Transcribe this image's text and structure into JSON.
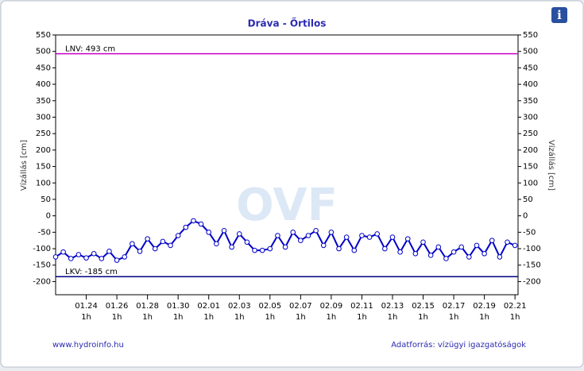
{
  "chart_data": {
    "type": "line",
    "title": "Dráva - Őrtilos",
    "y_label": "Vízállás [cm]",
    "y2_label": "Vízállás [cm]",
    "watermark": "OVF",
    "footer_left": "www.hydroinfo.hu",
    "footer_right": "Adatforrás: vízügyi igazgatóságok",
    "x": [
      0,
      0.5,
      1,
      1.5,
      2,
      2.5,
      3,
      3.5,
      4,
      4.5,
      5,
      5.5,
      6,
      6.5,
      7,
      7.5,
      8,
      8.5,
      9,
      9.5,
      10,
      10.5,
      11,
      11.5,
      12,
      12.5,
      13,
      13.5,
      14,
      14.5,
      15,
      15.5,
      16,
      16.5,
      17,
      17.5,
      18,
      18.5,
      19,
      19.5,
      20,
      20.5,
      21,
      21.5,
      22,
      22.5,
      23,
      23.5,
      24,
      24.5,
      25,
      25.5,
      26,
      26.5,
      27,
      27.5,
      28,
      28.5,
      29,
      29.5,
      30
    ],
    "series": [
      {
        "name": "Vízállás",
        "color": "#0000c8",
        "values": [
          -125,
          -110,
          -130,
          -118,
          -128,
          -115,
          -130,
          -108,
          -135,
          -125,
          -85,
          -108,
          -70,
          -100,
          -78,
          -90,
          -60,
          -35,
          -15,
          -25,
          -50,
          -85,
          -45,
          -95,
          -55,
          -80,
          -105,
          -105,
          -100,
          -60,
          -95,
          -50,
          -75,
          -60,
          -45,
          -90,
          -50,
          -100,
          -65,
          -105,
          -60,
          -65,
          -55,
          -100,
          -65,
          -110,
          -70,
          -115,
          -80,
          -120,
          -95,
          -130,
          -110,
          -95,
          -125,
          -90,
          -115,
          -75,
          -125,
          -80,
          -90
        ]
      }
    ],
    "reference_lines": [
      {
        "label": "LNV: 493 cm",
        "value": 493,
        "color": "#c800c8"
      },
      {
        "label": "LKV: -185 cm",
        "value": -185,
        "color": "#000080"
      }
    ],
    "xlim": [
      0,
      30.2
    ],
    "xticks": [
      {
        "value": 2,
        "label": "01.24"
      },
      {
        "value": 4,
        "label": "01.26"
      },
      {
        "value": 6,
        "label": "01.28"
      },
      {
        "value": 8,
        "label": "01.30"
      },
      {
        "value": 10,
        "label": "02.01"
      },
      {
        "value": 12,
        "label": "02.03"
      },
      {
        "value": 14,
        "label": "02.05"
      },
      {
        "value": 16,
        "label": "02.07"
      },
      {
        "value": 18,
        "label": "02.09"
      },
      {
        "value": 20,
        "label": "02.11"
      },
      {
        "value": 22,
        "label": "02.13"
      },
      {
        "value": 24,
        "label": "02.15"
      },
      {
        "value": 26,
        "label": "02.17"
      },
      {
        "value": 28,
        "label": "02.19"
      },
      {
        "value": 30,
        "label": "02.21"
      }
    ],
    "xtick_sublabel": "1h",
    "ylim": [
      -240,
      550
    ],
    "yticks": [
      -200,
      -150,
      -100,
      -50,
      0,
      50,
      100,
      150,
      200,
      250,
      300,
      350,
      400,
      450,
      500,
      550
    ],
    "y2lim": [
      -240,
      550
    ],
    "y2ticks": [
      -200,
      -150,
      -100,
      -50,
      0,
      50,
      100,
      150,
      200,
      250,
      300,
      350,
      400,
      450,
      500,
      550
    ]
  }
}
